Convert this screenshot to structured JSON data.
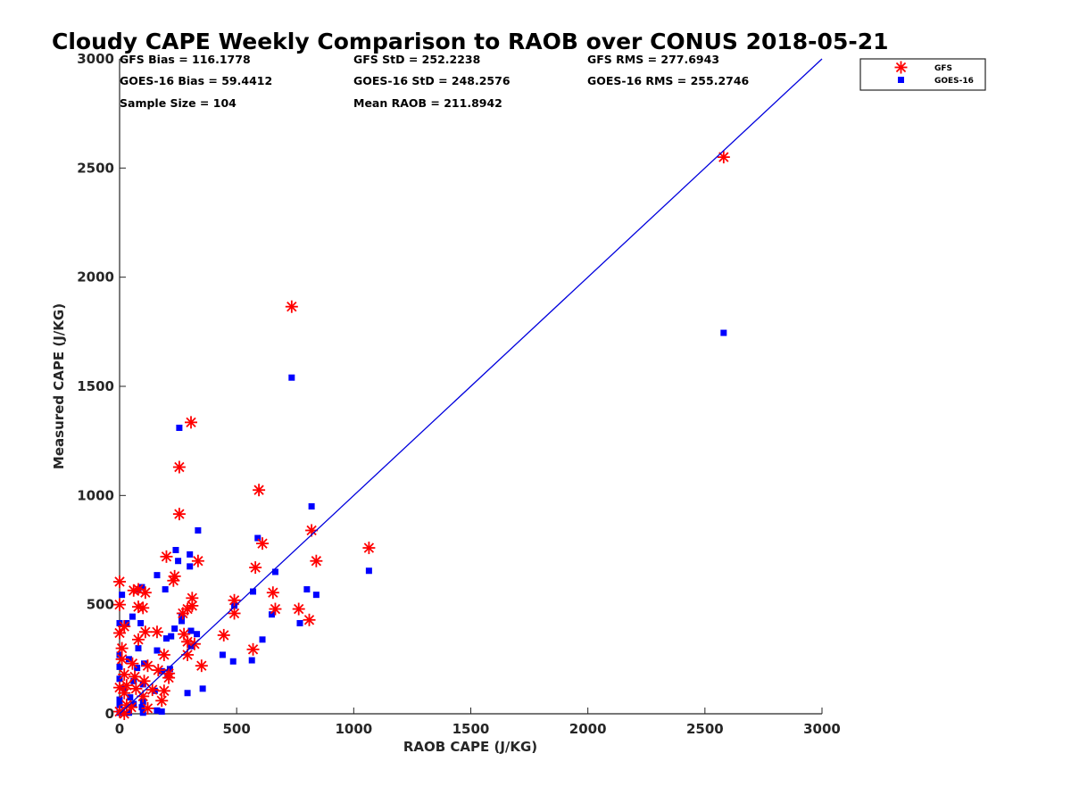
{
  "chart_data": {
    "type": "scatter",
    "title": "Cloudy CAPE Weekly Comparison to RAOB over CONUS 2018-05-21",
    "xlabel": "RAOB CAPE (J/KG)",
    "ylabel": "Measured CAPE (J/KG)",
    "xlim": [
      0,
      3000
    ],
    "ylim": [
      0,
      3000
    ],
    "xticks": [
      "0",
      "500",
      "1000",
      "1500",
      "2000",
      "2500",
      "3000"
    ],
    "yticks": [
      "0",
      "500",
      "1000",
      "1500",
      "2000",
      "2500",
      "3000"
    ],
    "grid": false,
    "legend_position": "top-right",
    "stats": [
      "GFS Bias = 116.1778",
      "GFS StD = 252.2238",
      "GFS RMS = 277.6943",
      "GOES-16 Bias = 59.4412",
      "GOES-16 StD = 248.2576",
      "GOES-16 RMS = 255.2746",
      "Sample Size = 104",
      "Mean RAOB = 211.8942"
    ],
    "reference_line": {
      "x": [
        0,
        3000
      ],
      "y": [
        0,
        3000
      ],
      "color": "#0000dd"
    },
    "series": [
      {
        "name": "GFS",
        "marker": "asterisk",
        "color": "#ff0000",
        "points": [
          [
            2580,
            2550
          ],
          [
            735,
            1865
          ],
          [
            305,
            1335
          ],
          [
            255,
            1130
          ],
          [
            595,
            1025
          ],
          [
            255,
            915
          ],
          [
            820,
            840
          ],
          [
            610,
            780
          ],
          [
            1065,
            760
          ],
          [
            200,
            720
          ],
          [
            335,
            700
          ],
          [
            840,
            700
          ],
          [
            580,
            670
          ],
          [
            235,
            630
          ],
          [
            230,
            610
          ],
          [
            0,
            605
          ],
          [
            60,
            565
          ],
          [
            80,
            570
          ],
          [
            110,
            555
          ],
          [
            655,
            555
          ],
          [
            310,
            530
          ],
          [
            490,
            520
          ],
          [
            0,
            500
          ],
          [
            80,
            490
          ],
          [
            100,
            485
          ],
          [
            290,
            480
          ],
          [
            310,
            495
          ],
          [
            665,
            480
          ],
          [
            765,
            480
          ],
          [
            270,
            460
          ],
          [
            490,
            460
          ],
          [
            810,
            430
          ],
          [
            20,
            400
          ],
          [
            0,
            370
          ],
          [
            110,
            375
          ],
          [
            160,
            375
          ],
          [
            275,
            365
          ],
          [
            445,
            360
          ],
          [
            80,
            340
          ],
          [
            290,
            330
          ],
          [
            320,
            320
          ],
          [
            10,
            300
          ],
          [
            570,
            295
          ],
          [
            190,
            270
          ],
          [
            290,
            270
          ],
          [
            10,
            250
          ],
          [
            55,
            230
          ],
          [
            120,
            220
          ],
          [
            350,
            220
          ],
          [
            165,
            200
          ],
          [
            210,
            185
          ],
          [
            20,
            180
          ],
          [
            65,
            170
          ],
          [
            210,
            165
          ],
          [
            105,
            150
          ],
          [
            30,
            130
          ],
          [
            0,
            120
          ],
          [
            70,
            115
          ],
          [
            140,
            110
          ],
          [
            190,
            105
          ],
          [
            20,
            95
          ],
          [
            100,
            80
          ],
          [
            180,
            60
          ],
          [
            30,
            40
          ],
          [
            50,
            30
          ],
          [
            0,
            10
          ],
          [
            20,
            0
          ],
          [
            120,
            25
          ]
        ]
      },
      {
        "name": "GOES-16",
        "marker": "square",
        "color": "#0000ff",
        "points": [
          [
            2580,
            1745
          ],
          [
            735,
            1540
          ],
          [
            255,
            1310
          ],
          [
            820,
            950
          ],
          [
            335,
            840
          ],
          [
            590,
            805
          ],
          [
            240,
            750
          ],
          [
            300,
            730
          ],
          [
            250,
            700
          ],
          [
            665,
            650
          ],
          [
            1065,
            655
          ],
          [
            160,
            635
          ],
          [
            300,
            675
          ],
          [
            95,
            580
          ],
          [
            195,
            570
          ],
          [
            570,
            560
          ],
          [
            800,
            570
          ],
          [
            80,
            570
          ],
          [
            10,
            545
          ],
          [
            840,
            545
          ],
          [
            490,
            495
          ],
          [
            265,
            450
          ],
          [
            650,
            455
          ],
          [
            55,
            445
          ],
          [
            265,
            425
          ],
          [
            30,
            415
          ],
          [
            90,
            415
          ],
          [
            0,
            415
          ],
          [
            770,
            415
          ],
          [
            235,
            390
          ],
          [
            305,
            380
          ],
          [
            330,
            365
          ],
          [
            220,
            355
          ],
          [
            200,
            345
          ],
          [
            610,
            340
          ],
          [
            305,
            310
          ],
          [
            80,
            300
          ],
          [
            160,
            290
          ],
          [
            0,
            270
          ],
          [
            440,
            270
          ],
          [
            40,
            250
          ],
          [
            565,
            245
          ],
          [
            485,
            240
          ],
          [
            105,
            230
          ],
          [
            75,
            210
          ],
          [
            0,
            215
          ],
          [
            215,
            205
          ],
          [
            180,
            195
          ],
          [
            205,
            175
          ],
          [
            0,
            160
          ],
          [
            60,
            150
          ],
          [
            100,
            135
          ],
          [
            355,
            115
          ],
          [
            20,
            115
          ],
          [
            150,
            105
          ],
          [
            290,
            95
          ],
          [
            45,
            75
          ],
          [
            0,
            65
          ],
          [
            100,
            55
          ],
          [
            60,
            45
          ],
          [
            0,
            40
          ],
          [
            95,
            30
          ],
          [
            160,
            15
          ],
          [
            180,
            10
          ],
          [
            0,
            5
          ],
          [
            40,
            5
          ],
          [
            100,
            5
          ]
        ]
      }
    ]
  }
}
